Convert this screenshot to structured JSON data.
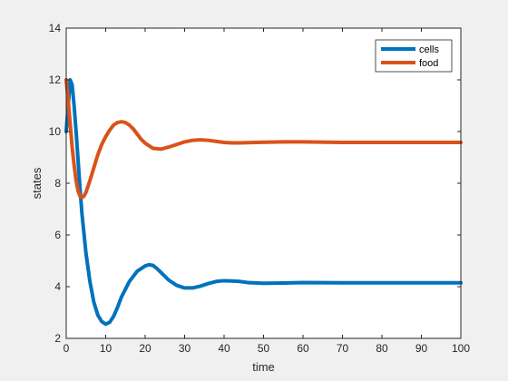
{
  "chart_data": {
    "type": "line",
    "title": "",
    "xlabel": "time",
    "ylabel": "states",
    "xlim": [
      0,
      100
    ],
    "ylim": [
      2,
      14
    ],
    "xticks": [
      0,
      10,
      20,
      30,
      40,
      50,
      60,
      70,
      80,
      90,
      100
    ],
    "yticks": [
      2,
      4,
      6,
      8,
      10,
      12,
      14
    ],
    "grid": false,
    "legend_position": "top-right",
    "series": [
      {
        "name": "cells",
        "color": "#0072bd",
        "x": [
          0,
          0.5,
          1,
          1.5,
          2,
          2.5,
          3,
          3.5,
          4,
          5,
          6,
          7,
          8,
          9,
          10,
          11,
          12,
          13,
          14,
          16,
          18,
          20,
          21,
          22,
          23,
          24,
          26,
          28,
          30,
          32,
          34,
          36,
          38,
          40,
          42,
          44,
          46,
          50,
          55,
          60,
          70,
          80,
          90,
          100
        ],
        "y": [
          10.0,
          11.0,
          12.0,
          11.8,
          11.0,
          10.0,
          8.9,
          7.8,
          6.8,
          5.3,
          4.2,
          3.4,
          2.9,
          2.65,
          2.55,
          2.62,
          2.85,
          3.2,
          3.6,
          4.2,
          4.6,
          4.8,
          4.85,
          4.82,
          4.7,
          4.55,
          4.25,
          4.05,
          3.95,
          3.95,
          4.02,
          4.12,
          4.2,
          4.23,
          4.22,
          4.2,
          4.16,
          4.13,
          4.14,
          4.16,
          4.15,
          4.15,
          4.15,
          4.15
        ]
      },
      {
        "name": "food",
        "color": "#d95319",
        "x": [
          0,
          0.5,
          1,
          1.5,
          2,
          2.5,
          3,
          3.5,
          4,
          4.5,
          5,
          6,
          7,
          8,
          9,
          10,
          11,
          12,
          13,
          14,
          15,
          16,
          17,
          18,
          19,
          20,
          22,
          24,
          26,
          28,
          30,
          32,
          34,
          36,
          38,
          40,
          42,
          44,
          48,
          55,
          60,
          70,
          80,
          90,
          100
        ],
        "y": [
          12.0,
          11.2,
          10.3,
          9.4,
          8.7,
          8.1,
          7.7,
          7.5,
          7.45,
          7.5,
          7.65,
          8.1,
          8.6,
          9.1,
          9.5,
          9.8,
          10.05,
          10.25,
          10.35,
          10.38,
          10.35,
          10.25,
          10.1,
          9.9,
          9.7,
          9.55,
          9.35,
          9.32,
          9.4,
          9.5,
          9.6,
          9.66,
          9.68,
          9.66,
          9.62,
          9.58,
          9.56,
          9.56,
          9.58,
          9.6,
          9.6,
          9.58,
          9.58,
          9.58,
          9.58
        ]
      }
    ]
  }
}
